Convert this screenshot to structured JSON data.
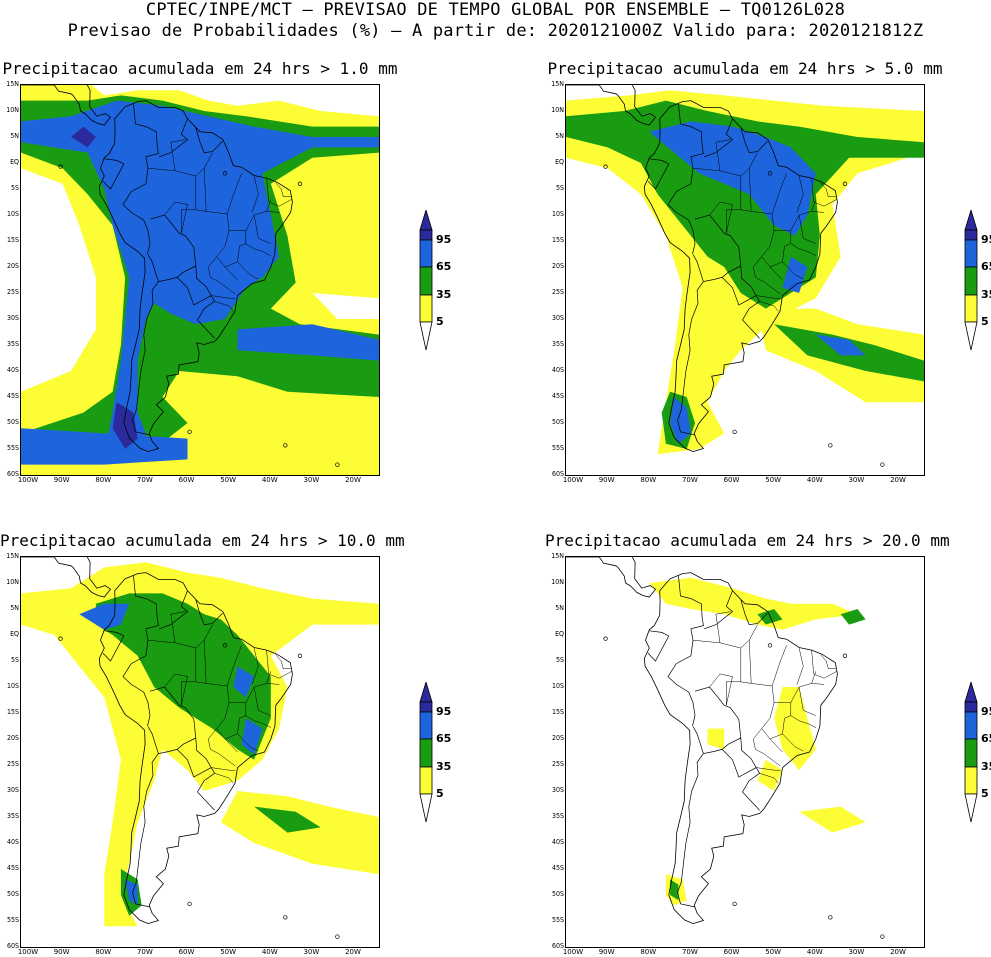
{
  "header": {
    "line1": "CPTEC/INPE/MCT — PREVISAO DE TEMPO GLOBAL POR ENSEMBLE — TQ0126L028",
    "line2": "Previsao de Probabilidades (%) —  A partir de: 2020121000Z  Valido para: 2020121812Z"
  },
  "colors": {
    "yellow": "#fdfd35",
    "green": "#199c12",
    "blue": "#1e64dc",
    "navy": "#2a2a9c",
    "coast": "#000000",
    "background": "#ffffff"
  },
  "map_axes": {
    "lat_labels": [
      "15N",
      "10N",
      "5N",
      "EQ",
      "5S",
      "10S",
      "15S",
      "20S",
      "25S",
      "30S",
      "35S",
      "40S",
      "45S",
      "50S",
      "55S",
      "60S"
    ],
    "lon_labels": [
      "100W",
      "90W",
      "80W",
      "70W",
      "60W",
      "50W",
      "40W",
      "30W",
      "20W"
    ],
    "lat_range": [
      -60,
      15
    ],
    "lon_range": [
      -100,
      -14
    ]
  },
  "colorbar": {
    "labels": [
      "95",
      "65",
      "35",
      "5"
    ]
  },
  "panels": [
    {
      "title": "Precipitacao acumulada em 24 hrs > 1.0 mm",
      "threshold_mm": 1.0
    },
    {
      "title": "Precipitacao acumulada em 24 hrs > 5.0 mm",
      "threshold_mm": 5.0
    },
    {
      "title": "Precipitacao acumulada em 24 hrs > 10.0 mm",
      "threshold_mm": 10.0
    },
    {
      "title": "Precipitacao acumulada em 24 hrs > 20.0 mm",
      "threshold_mm": 20.0
    }
  ]
}
